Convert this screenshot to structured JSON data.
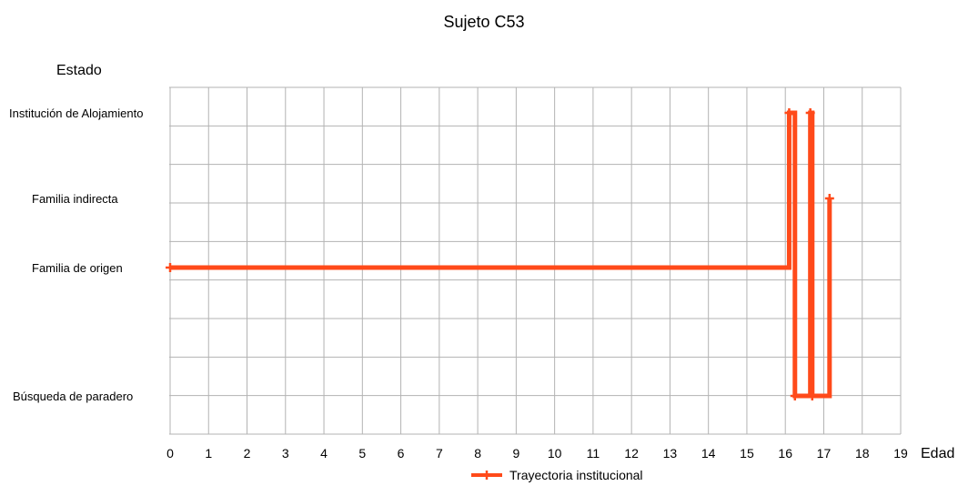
{
  "chart_data": {
    "type": "line",
    "title": "Sujeto C53",
    "xlabel": "Edad",
    "ylabel": "Estado",
    "xlim": [
      0,
      19
    ],
    "x_ticks": [
      "0",
      "1",
      "2",
      "3",
      "4",
      "5",
      "6",
      "7",
      "8",
      "9",
      "10",
      "11",
      "12",
      "13",
      "14",
      "15",
      "16",
      "17",
      "18",
      "19"
    ],
    "y_categories": [
      "Búsqueda de paradero",
      "Familia de origen",
      "Familia indirecta",
      "Institución de Alojamiento"
    ],
    "grid": true,
    "legend_position": "bottom",
    "series": [
      {
        "name": "Trayectoria institucional",
        "color": "#ff4a1a",
        "step": true,
        "x": [
          0,
          16.1,
          16.25,
          16.65,
          16.7,
          17.15
        ],
        "y": [
          "Familia de origen",
          "Institución de Alojamiento",
          "Búsqueda de paradero",
          "Institución de Alojamiento",
          "Búsqueda de paradero",
          "Familia indirecta"
        ]
      }
    ]
  }
}
